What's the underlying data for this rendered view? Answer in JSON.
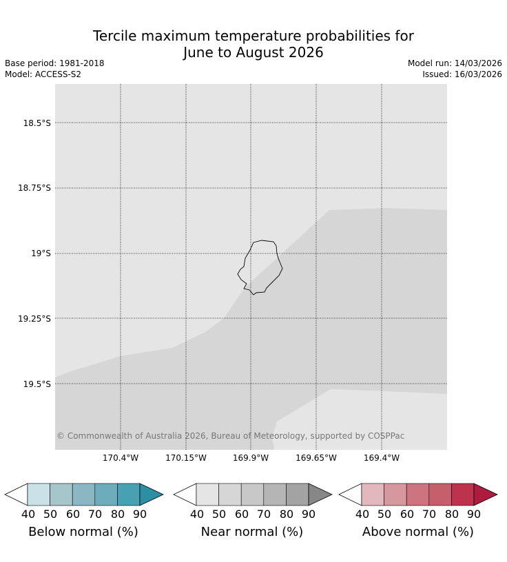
{
  "title_line1": "Tercile maximum temperature probabilities for",
  "title_line2": "June to August 2026",
  "base_period": "Base period: 1981-2018",
  "model": "Model: ACCESS-S2",
  "model_run": "Model run: 14/03/2026",
  "issued": "Issued: 16/03/2026",
  "map": {
    "lat_labels": [
      "18.5°S",
      "18.75°S",
      "19°S",
      "19.25°S",
      "19.5°S"
    ],
    "lon_labels": [
      "170.4°W",
      "170.15°W",
      "169.9°W",
      "169.65°W",
      "169.4°W"
    ],
    "copyright": "© Commonwealth of Australia 2026, Bureau of Meteorology, supported by COSPPac",
    "colors": {
      "near_40_50": "#e5e5e5",
      "near_50_60": "#d6d6d6",
      "coastline": "#000000"
    }
  },
  "colorbars": [
    {
      "name": "below",
      "title": "Below normal (%)",
      "ticks": [
        "40",
        "50",
        "60",
        "70",
        "80",
        "90"
      ],
      "colors": [
        "#ffffff",
        "#c9e1e7",
        "#a6c6cc",
        "#8ab7c3",
        "#6dacbb",
        "#48a1b2",
        "#2c8fa3"
      ]
    },
    {
      "name": "near",
      "title": "Near normal (%)",
      "ticks": [
        "40",
        "50",
        "60",
        "70",
        "80",
        "90"
      ],
      "colors": [
        "#ffffff",
        "#e5e5e5",
        "#d6d6d6",
        "#c8c8c8",
        "#b5b5b5",
        "#a3a3a3",
        "#878787"
      ]
    },
    {
      "name": "above",
      "title": "Above normal (%)",
      "ticks": [
        "40",
        "50",
        "60",
        "70",
        "80",
        "90"
      ],
      "colors": [
        "#ffffff",
        "#e2b8bd",
        "#d6979e",
        "#cc7580",
        "#c55f6b",
        "#bd334e",
        "#ae1b3f"
      ]
    }
  ]
}
